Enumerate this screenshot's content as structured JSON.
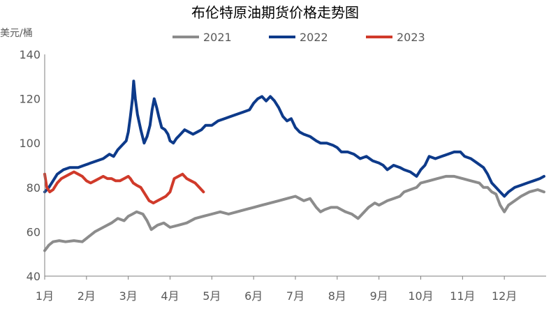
{
  "chart_data": {
    "type": "line",
    "title": "布伦特原油期货价格走势图",
    "ylabel": "美元/桶",
    "ylim": [
      40,
      140
    ],
    "yticks": [
      40,
      60,
      80,
      100,
      120,
      140
    ],
    "xlim": [
      1,
      13
    ],
    "month_ticks": [
      {
        "m": 1,
        "label": "1月"
      },
      {
        "m": 2,
        "label": "2月"
      },
      {
        "m": 3,
        "label": "3月"
      },
      {
        "m": 4,
        "label": "4月"
      },
      {
        "m": 5,
        "label": "5月"
      },
      {
        "m": 6,
        "label": "6月"
      },
      {
        "m": 7,
        "label": "7月"
      },
      {
        "m": 8,
        "label": "8月"
      },
      {
        "m": 9,
        "label": "9月"
      },
      {
        "m": 10,
        "label": "10月"
      },
      {
        "m": 11,
        "label": "11月"
      },
      {
        "m": 12,
        "label": "12月"
      }
    ],
    "legend_position": "top-center",
    "series": [
      {
        "name": "2021",
        "color": "#8c8c8c",
        "points": [
          [
            1.0,
            51.5
          ],
          [
            1.1,
            54
          ],
          [
            1.2,
            55.5
          ],
          [
            1.35,
            56
          ],
          [
            1.5,
            55.5
          ],
          [
            1.7,
            56
          ],
          [
            1.9,
            55.5
          ],
          [
            2.0,
            57
          ],
          [
            2.2,
            60
          ],
          [
            2.4,
            62
          ],
          [
            2.6,
            64
          ],
          [
            2.75,
            66
          ],
          [
            2.9,
            65
          ],
          [
            3.0,
            67
          ],
          [
            3.1,
            68
          ],
          [
            3.2,
            69
          ],
          [
            3.35,
            68
          ],
          [
            3.45,
            65
          ],
          [
            3.55,
            61
          ],
          [
            3.7,
            63
          ],
          [
            3.85,
            64
          ],
          [
            4.0,
            62
          ],
          [
            4.2,
            63
          ],
          [
            4.4,
            64
          ],
          [
            4.6,
            66
          ],
          [
            4.8,
            67
          ],
          [
            5.0,
            68
          ],
          [
            5.2,
            69
          ],
          [
            5.4,
            68
          ],
          [
            5.6,
            69
          ],
          [
            5.8,
            70
          ],
          [
            6.0,
            71
          ],
          [
            6.2,
            72
          ],
          [
            6.4,
            73
          ],
          [
            6.6,
            74
          ],
          [
            6.8,
            75
          ],
          [
            7.0,
            76
          ],
          [
            7.1,
            75
          ],
          [
            7.2,
            74
          ],
          [
            7.35,
            75
          ],
          [
            7.5,
            71
          ],
          [
            7.6,
            69
          ],
          [
            7.7,
            70
          ],
          [
            7.85,
            71
          ],
          [
            8.0,
            71
          ],
          [
            8.1,
            70
          ],
          [
            8.2,
            69
          ],
          [
            8.35,
            68
          ],
          [
            8.5,
            66
          ],
          [
            8.6,
            68
          ],
          [
            8.75,
            71
          ],
          [
            8.9,
            73
          ],
          [
            9.0,
            72
          ],
          [
            9.1,
            73
          ],
          [
            9.2,
            74
          ],
          [
            9.35,
            75
          ],
          [
            9.5,
            76
          ],
          [
            9.6,
            78
          ],
          [
            9.75,
            79
          ],
          [
            9.9,
            80
          ],
          [
            10.0,
            82
          ],
          [
            10.2,
            83
          ],
          [
            10.4,
            84
          ],
          [
            10.6,
            85
          ],
          [
            10.8,
            85
          ],
          [
            11.0,
            84
          ],
          [
            11.2,
            83
          ],
          [
            11.4,
            82
          ],
          [
            11.5,
            80
          ],
          [
            11.6,
            80
          ],
          [
            11.7,
            78
          ],
          [
            11.8,
            77
          ],
          [
            11.9,
            72
          ],
          [
            12.0,
            69
          ],
          [
            12.1,
            72
          ],
          [
            12.25,
            74
          ],
          [
            12.4,
            76
          ],
          [
            12.6,
            78
          ],
          [
            12.8,
            79
          ],
          [
            12.95,
            78
          ]
        ]
      },
      {
        "name": "2022",
        "color": "#0d3a8a",
        "points": [
          [
            1.0,
            78
          ],
          [
            1.1,
            80
          ],
          [
            1.2,
            83
          ],
          [
            1.3,
            86
          ],
          [
            1.45,
            88
          ],
          [
            1.6,
            89
          ],
          [
            1.8,
            89
          ],
          [
            1.95,
            90
          ],
          [
            2.1,
            91
          ],
          [
            2.25,
            92
          ],
          [
            2.4,
            93
          ],
          [
            2.55,
            95
          ],
          [
            2.65,
            94
          ],
          [
            2.75,
            97
          ],
          [
            2.85,
            99
          ],
          [
            2.95,
            101
          ],
          [
            3.0,
            105
          ],
          [
            3.05,
            112
          ],
          [
            3.1,
            120
          ],
          [
            3.13,
            128
          ],
          [
            3.17,
            120
          ],
          [
            3.22,
            113
          ],
          [
            3.3,
            106
          ],
          [
            3.38,
            100
          ],
          [
            3.45,
            103
          ],
          [
            3.52,
            108
          ],
          [
            3.57,
            115
          ],
          [
            3.62,
            120
          ],
          [
            3.68,
            116
          ],
          [
            3.73,
            112
          ],
          [
            3.8,
            107
          ],
          [
            3.88,
            106
          ],
          [
            3.95,
            104
          ],
          [
            4.0,
            101
          ],
          [
            4.08,
            100
          ],
          [
            4.15,
            102
          ],
          [
            4.25,
            104
          ],
          [
            4.35,
            106
          ],
          [
            4.45,
            105
          ],
          [
            4.55,
            104
          ],
          [
            4.65,
            105
          ],
          [
            4.75,
            106
          ],
          [
            4.85,
            108
          ],
          [
            5.0,
            108
          ],
          [
            5.15,
            110
          ],
          [
            5.3,
            111
          ],
          [
            5.45,
            112
          ],
          [
            5.6,
            113
          ],
          [
            5.75,
            114
          ],
          [
            5.9,
            115
          ],
          [
            6.0,
            118
          ],
          [
            6.1,
            120
          ],
          [
            6.2,
            121
          ],
          [
            6.3,
            119
          ],
          [
            6.4,
            121
          ],
          [
            6.5,
            119
          ],
          [
            6.6,
            116
          ],
          [
            6.7,
            112
          ],
          [
            6.8,
            110
          ],
          [
            6.9,
            111
          ],
          [
            7.0,
            107
          ],
          [
            7.1,
            105
          ],
          [
            7.2,
            104
          ],
          [
            7.35,
            103
          ],
          [
            7.5,
            101
          ],
          [
            7.6,
            100
          ],
          [
            7.75,
            100
          ],
          [
            7.9,
            99
          ],
          [
            8.0,
            98
          ],
          [
            8.1,
            96
          ],
          [
            8.25,
            96
          ],
          [
            8.4,
            95
          ],
          [
            8.55,
            93
          ],
          [
            8.7,
            94
          ],
          [
            8.85,
            92
          ],
          [
            9.0,
            91
          ],
          [
            9.1,
            90
          ],
          [
            9.2,
            88
          ],
          [
            9.35,
            90
          ],
          [
            9.5,
            89
          ],
          [
            9.6,
            88
          ],
          [
            9.75,
            87
          ],
          [
            9.9,
            85
          ],
          [
            10.0,
            88
          ],
          [
            10.1,
            90
          ],
          [
            10.2,
            94
          ],
          [
            10.35,
            93
          ],
          [
            10.5,
            94
          ],
          [
            10.65,
            95
          ],
          [
            10.8,
            96
          ],
          [
            10.95,
            96
          ],
          [
            11.05,
            94
          ],
          [
            11.2,
            93
          ],
          [
            11.35,
            91
          ],
          [
            11.5,
            89
          ],
          [
            11.6,
            86
          ],
          [
            11.7,
            82
          ],
          [
            11.8,
            80
          ],
          [
            11.9,
            78
          ],
          [
            12.0,
            76
          ],
          [
            12.1,
            78
          ],
          [
            12.25,
            80
          ],
          [
            12.4,
            81
          ],
          [
            12.55,
            82
          ],
          [
            12.7,
            83
          ],
          [
            12.85,
            84
          ],
          [
            12.95,
            85
          ]
        ]
      },
      {
        "name": "2023",
        "color": "#d03a2a",
        "points": [
          [
            1.0,
            86
          ],
          [
            1.05,
            80
          ],
          [
            1.12,
            78
          ],
          [
            1.2,
            79
          ],
          [
            1.3,
            82
          ],
          [
            1.4,
            84
          ],
          [
            1.5,
            85
          ],
          [
            1.6,
            86
          ],
          [
            1.7,
            87
          ],
          [
            1.8,
            86
          ],
          [
            1.9,
            85
          ],
          [
            2.0,
            83
          ],
          [
            2.1,
            82
          ],
          [
            2.2,
            83
          ],
          [
            2.3,
            84
          ],
          [
            2.4,
            85
          ],
          [
            2.5,
            84
          ],
          [
            2.6,
            84
          ],
          [
            2.7,
            83
          ],
          [
            2.8,
            83
          ],
          [
            2.9,
            84
          ],
          [
            3.0,
            85
          ],
          [
            3.05,
            84
          ],
          [
            3.12,
            82
          ],
          [
            3.2,
            81
          ],
          [
            3.3,
            80
          ],
          [
            3.4,
            77
          ],
          [
            3.5,
            74
          ],
          [
            3.6,
            73
          ],
          [
            3.7,
            74
          ],
          [
            3.8,
            75
          ],
          [
            3.9,
            76
          ],
          [
            4.0,
            78
          ],
          [
            4.05,
            81
          ],
          [
            4.1,
            84
          ],
          [
            4.2,
            85
          ],
          [
            4.3,
            86
          ],
          [
            4.4,
            84
          ],
          [
            4.5,
            83
          ],
          [
            4.6,
            82
          ],
          [
            4.7,
            80
          ],
          [
            4.8,
            78
          ]
        ]
      }
    ]
  }
}
